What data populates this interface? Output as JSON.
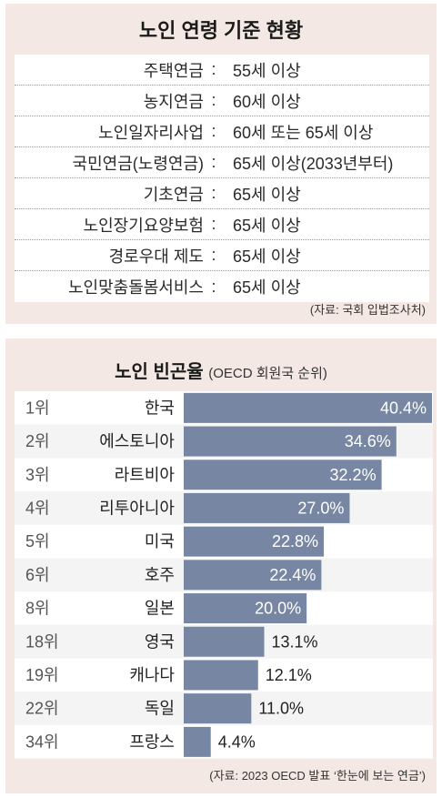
{
  "age_panel": {
    "title": "노인 연령 기준 현황",
    "separator": ":",
    "rows": [
      {
        "name": "주택연금",
        "value": "55세 이상"
      },
      {
        "name": "농지연금",
        "value": "60세 이상"
      },
      {
        "name": "노인일자리사업",
        "value": "60세 또는 65세 이상"
      },
      {
        "name": "국민연금(노령연금)",
        "value": "65세 이상(2033년부터)"
      },
      {
        "name": "기초연금",
        "value": "65세 이상"
      },
      {
        "name": "노인장기요양보험",
        "value": "65세 이상"
      },
      {
        "name": "경로우대 제도",
        "value": "65세 이상"
      },
      {
        "name": "노인맞춤돌봄서비스",
        "value": "65세 이상"
      }
    ],
    "source": "(자료: 국회 입법조사처)"
  },
  "poverty_panel": {
    "title": "노인 빈곤율",
    "subtitle": "(OECD 회원국 순위)",
    "source": "(자료: 2023 OECD 발표 ‘한눈에 보는 연금’)"
  },
  "colors": {
    "panel_bg": "#f3e8e3",
    "bar": "#7787a3",
    "row_odd": "#ffffff",
    "row_even": "#f4f4f4"
  },
  "chart_data": {
    "type": "bar",
    "orientation": "horizontal",
    "ranks": [
      "1위",
      "2위",
      "3위",
      "4위",
      "5위",
      "6위",
      "8위",
      "18위",
      "19위",
      "22위",
      "34위"
    ],
    "categories": [
      "한국",
      "에스토니아",
      "라트비아",
      "리투아니아",
      "미국",
      "호주",
      "일본",
      "영국",
      "캐나다",
      "독일",
      "프랑스"
    ],
    "values": [
      40.4,
      34.6,
      32.2,
      27.0,
      22.8,
      22.4,
      20.0,
      13.1,
      12.1,
      11.0,
      4.4
    ],
    "labels": [
      "40.4%",
      "34.6%",
      "32.2%",
      "27.0%",
      "22.8%",
      "22.4%",
      "20.0%",
      "13.1%",
      "12.1%",
      "11.0%",
      "4.4%"
    ],
    "xlim": [
      0,
      40.4
    ],
    "label_inside_min": 20
  }
}
